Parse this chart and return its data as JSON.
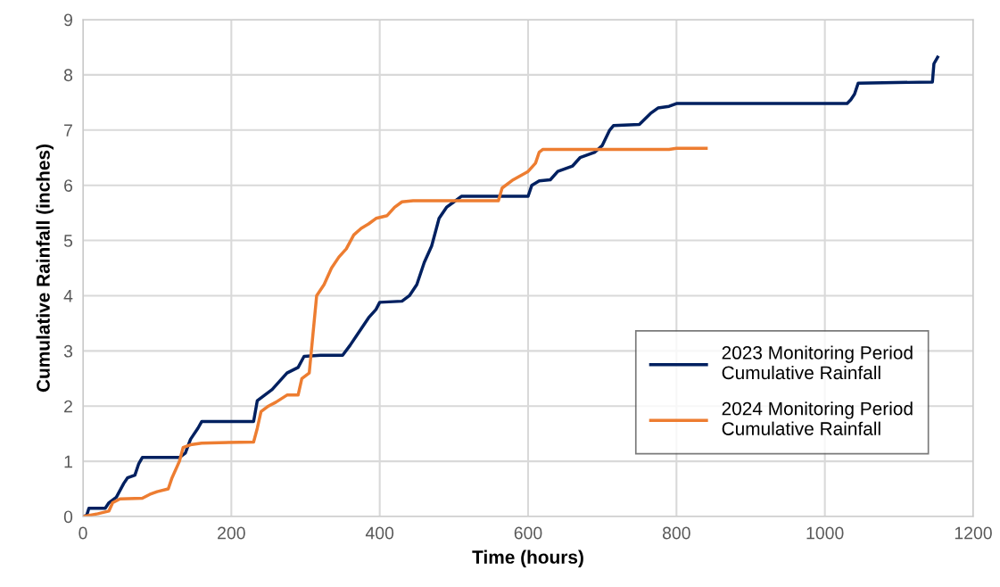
{
  "chart_data": {
    "type": "line",
    "xlabel": "Time (hours)",
    "ylabel": "Cumulative Rainfall (inches)",
    "xlim": [
      0,
      1200
    ],
    "xticks": [
      0,
      200,
      400,
      600,
      800,
      1000,
      1200
    ],
    "ylim": [
      0,
      9
    ],
    "yticks": [
      0,
      1,
      2,
      3,
      4,
      5,
      6,
      7,
      8,
      9
    ],
    "grid": true,
    "legend": "right",
    "marker": "none",
    "line_style": "solid",
    "series": [
      {
        "name": "2023 Monitoring Period\nCumulative Rainfall",
        "color": "#002060",
        "x": [
          0,
          5,
          8,
          30,
          35,
          45,
          55,
          60,
          70,
          75,
          80,
          130,
          138,
          145,
          155,
          160,
          230,
          235,
          245,
          255,
          265,
          275,
          290,
          298,
          320,
          350,
          360,
          370,
          385,
          395,
          400,
          430,
          440,
          450,
          460,
          470,
          480,
          490,
          500,
          510,
          600,
          605,
          615,
          630,
          640,
          660,
          670,
          690,
          700,
          710,
          715,
          750,
          765,
          775,
          790,
          800,
          1030,
          1035,
          1040,
          1045,
          1145,
          1147,
          1152
        ],
        "values": [
          0,
          0.02,
          0.15,
          0.15,
          0.25,
          0.35,
          0.6,
          0.7,
          0.75,
          0.95,
          1.07,
          1.07,
          1.15,
          1.4,
          1.6,
          1.72,
          1.72,
          2.1,
          2.2,
          2.3,
          2.45,
          2.6,
          2.7,
          2.9,
          2.92,
          2.92,
          3.1,
          3.3,
          3.6,
          3.75,
          3.88,
          3.9,
          4.0,
          4.2,
          4.6,
          4.9,
          5.4,
          5.6,
          5.7,
          5.8,
          5.8,
          6.0,
          6.08,
          6.1,
          6.25,
          6.35,
          6.5,
          6.6,
          6.72,
          7.0,
          7.08,
          7.1,
          7.3,
          7.4,
          7.43,
          7.48,
          7.48,
          7.55,
          7.65,
          7.85,
          7.87,
          8.2,
          8.32
        ]
      },
      {
        "name": "2024 Monitoring Period\nCumulative Rainfall",
        "color": "#ed7d31",
        "x": [
          0,
          20,
          35,
          40,
          50,
          80,
          90,
          100,
          115,
          120,
          130,
          135,
          145,
          160,
          230,
          235,
          240,
          250,
          260,
          275,
          290,
          295,
          305,
          310,
          315,
          325,
          335,
          345,
          355,
          365,
          375,
          385,
          395,
          410,
          420,
          430,
          445,
          560,
          565,
          580,
          600,
          610,
          615,
          620,
          790,
          800,
          840
        ],
        "values": [
          0,
          0.05,
          0.1,
          0.25,
          0.32,
          0.33,
          0.4,
          0.45,
          0.5,
          0.7,
          1.0,
          1.25,
          1.3,
          1.33,
          1.35,
          1.6,
          1.9,
          2.0,
          2.07,
          2.2,
          2.2,
          2.5,
          2.6,
          3.3,
          4.0,
          4.2,
          4.5,
          4.7,
          4.85,
          5.1,
          5.22,
          5.3,
          5.4,
          5.45,
          5.6,
          5.7,
          5.72,
          5.72,
          5.95,
          6.1,
          6.25,
          6.4,
          6.6,
          6.65,
          6.65,
          6.67,
          6.67
        ]
      }
    ]
  }
}
